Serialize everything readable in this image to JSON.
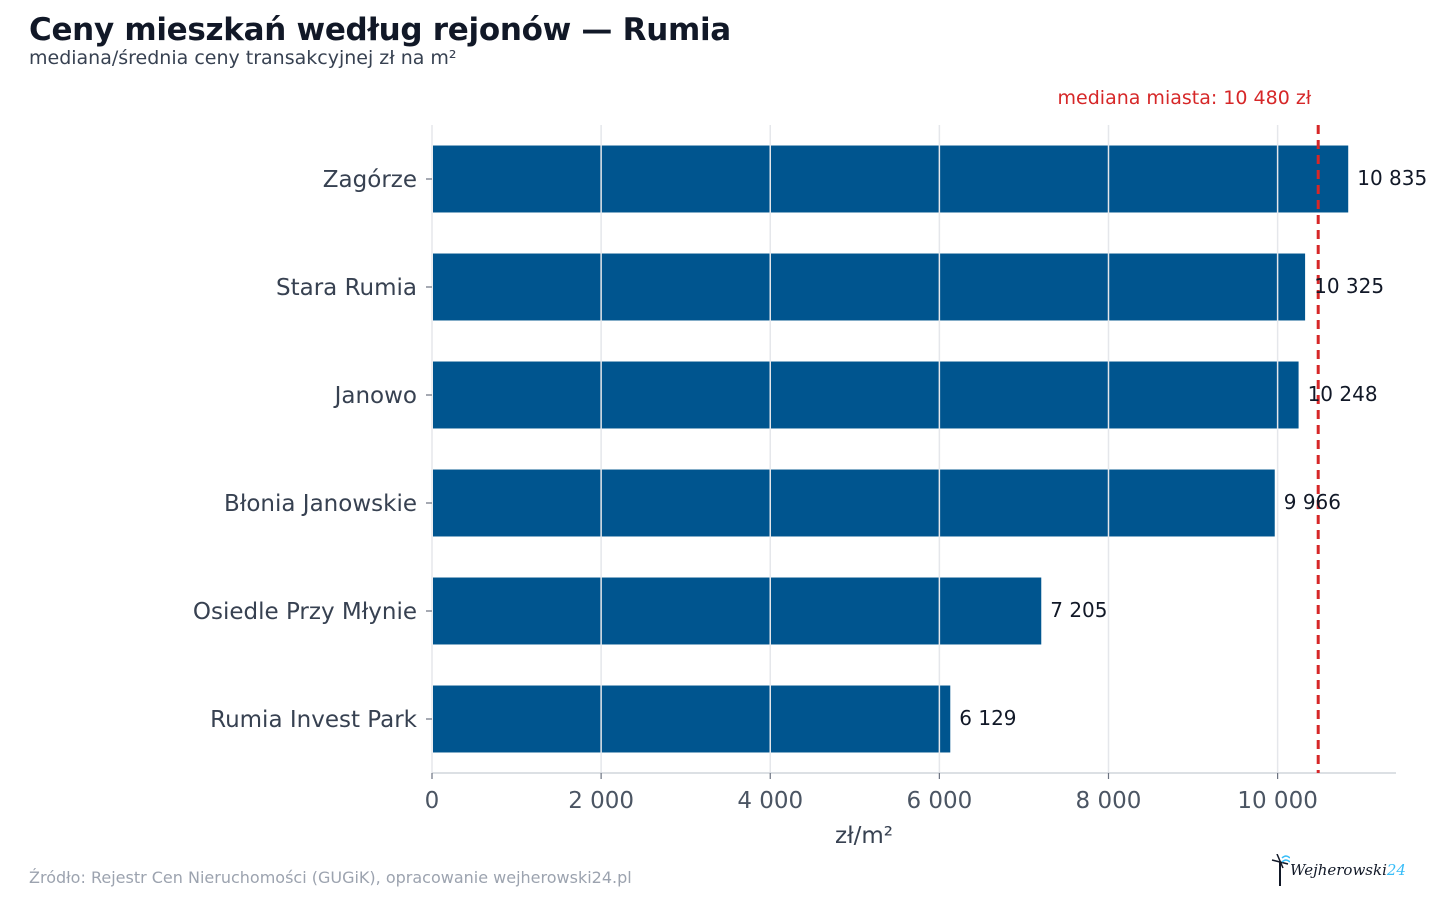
{
  "title": "Ceny mieszkań według rejonów — Rumia",
  "subtitle": "mediana/średnia ceny transakcyjnej zł na m²",
  "source": "Źródło: Rejestr Cen Nieruchomości (GUGiK), opracowanie wejherowski24.pl",
  "logo": {
    "name": "Wejherowski",
    "suffix": "24"
  },
  "colors": {
    "bar": "#00558f",
    "reference": "#d62728",
    "grid": "#e5e7eb"
  },
  "chart_data": {
    "type": "bar",
    "orientation": "horizontal",
    "categories": [
      "Zagórze",
      "Stara Rumia",
      "Janowo",
      "Błonia Janowskie",
      "Osiedle Przy Młynie",
      "Rumia Invest Park"
    ],
    "values": [
      10835,
      10325,
      10248,
      9966,
      7205,
      6129
    ],
    "value_labels": [
      "10 835",
      "10 325",
      "10 248",
      "9 966",
      "7 205",
      "6 129"
    ],
    "xlabel": "zł/m²",
    "ylabel": "",
    "xlim": [
      0,
      11400
    ],
    "xticks": [
      0,
      2000,
      4000,
      6000,
      8000,
      10000
    ],
    "xtick_labels": [
      "0",
      "2 000",
      "4 000",
      "6 000",
      "8 000",
      "10 000"
    ],
    "grid": "vertical",
    "reference_line": {
      "value": 10480,
      "label": "mediana miasta: 10 480 zł",
      "style": "dashed"
    }
  }
}
